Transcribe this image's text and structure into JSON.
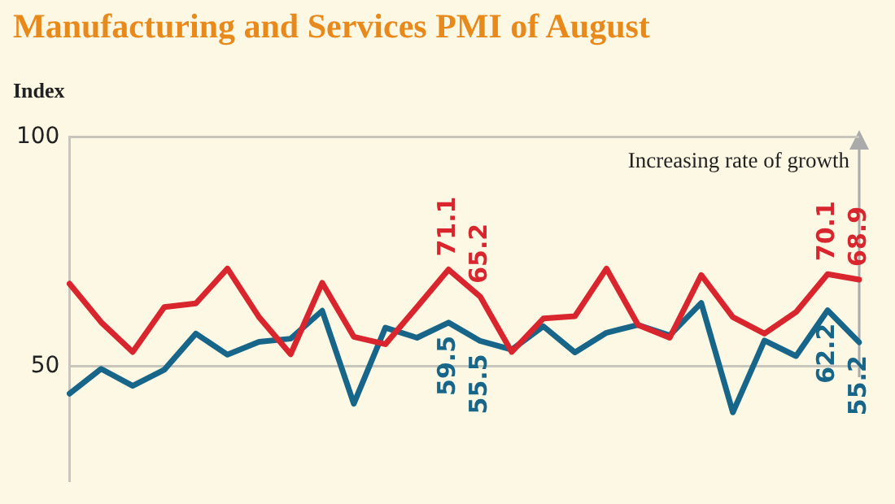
{
  "chart_data": {
    "type": "line",
    "title": "Manufacturing and Services PMI of August",
    "ylabel": "Index",
    "categories": [
      null,
      null,
      null,
      null,
      null,
      null,
      null,
      null,
      null,
      null,
      null,
      null,
      null,
      null,
      null,
      null,
      null,
      null,
      null,
      null,
      null,
      null,
      null,
      null,
      null,
      null
    ],
    "series": [
      {
        "color": "#d9262e",
        "values": [
          68.0,
          59.6,
          53.1,
          62.9,
          63.7,
          71.3,
          60.7,
          52.6,
          68.2,
          56.4,
          54.8,
          62.9,
          71.1,
          65.2,
          53.1,
          60.4,
          60.9,
          71.3,
          59.0,
          56.2,
          69.9,
          60.7,
          57.1,
          61.8,
          70.1,
          68.9
        ],
        "value_labels": [
          null,
          null,
          null,
          null,
          null,
          null,
          null,
          null,
          null,
          null,
          null,
          null,
          "71.1",
          "65.2",
          null,
          null,
          null,
          null,
          null,
          null,
          null,
          null,
          null,
          null,
          "70.1",
          "68.9"
        ]
      },
      {
        "color": "#17668a",
        "values": [
          44.0,
          49.4,
          45.7,
          49.2,
          57.1,
          52.5,
          55.3,
          56.0,
          62.1,
          41.8,
          58.4,
          56.2,
          59.5,
          55.5,
          53.6,
          58.7,
          53.0,
          57.3,
          59.0,
          56.7,
          63.8,
          39.9,
          55.6,
          52.2,
          62.2,
          55.2
        ],
        "value_labels": [
          null,
          null,
          null,
          null,
          null,
          null,
          null,
          null,
          null,
          null,
          null,
          null,
          "59.5",
          "55.5",
          null,
          null,
          null,
          null,
          null,
          null,
          null,
          null,
          null,
          null,
          "62.2",
          "55.2"
        ]
      }
    ],
    "ylim": [
      25,
      100
    ],
    "yticks": [
      50,
      100
    ],
    "grid": "y",
    "tick_labels": "y",
    "marker": "none",
    "line_style": "solid",
    "annotations": [
      "Increasing rate of growth"
    ]
  }
}
